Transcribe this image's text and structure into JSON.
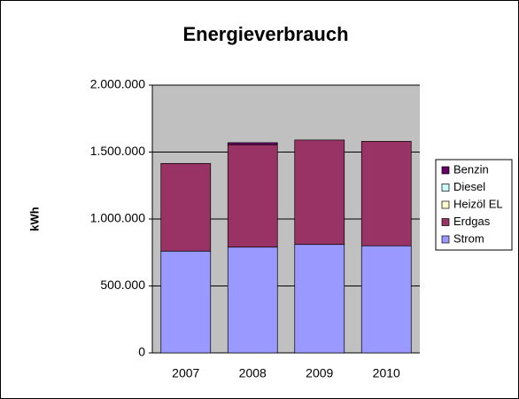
{
  "chart_data": {
    "type": "stacked_bar",
    "title": "Energieverbrauch",
    "y_label": "kWh",
    "categories": [
      "2007",
      "2008",
      "2009",
      "2010"
    ],
    "series": [
      {
        "name": "Strom",
        "color": "#9999ff",
        "values": [
          760000,
          790000,
          810000,
          800000
        ]
      },
      {
        "name": "Erdgas",
        "color": "#993366",
        "values": [
          655000,
          765000,
          780000,
          780000
        ]
      },
      {
        "name": "Heizöl EL",
        "color": "#ffffcc",
        "values": [
          0,
          0,
          0,
          0
        ]
      },
      {
        "name": "Diesel",
        "color": "#ccffff",
        "values": [
          0,
          0,
          0,
          0
        ]
      },
      {
        "name": "Benzin",
        "color": "#660066",
        "values": [
          0,
          15000,
          0,
          0
        ]
      }
    ],
    "ylim": [
      0,
      2000000
    ],
    "yticks": [
      0,
      {
        "value": 500000,
        "label": "500.000"
      },
      {
        "value": 1000000,
        "label": "1.000.000"
      },
      {
        "value": 1500000,
        "label": "1.500.000"
      },
      {
        "value": 2000000,
        "label": "2.000.000"
      }
    ],
    "grid": true,
    "legend": "right",
    "plot_background": "#c0c0c0"
  }
}
